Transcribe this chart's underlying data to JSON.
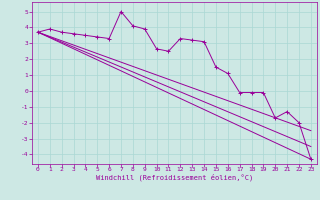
{
  "background_color": "#cde8e4",
  "line_color": "#990099",
  "grid_color": "#aad8d4",
  "xlabel": "Windchill (Refroidissement éolien,°C)",
  "xlim": [
    -0.5,
    23.5
  ],
  "ylim": [
    -4.6,
    5.6
  ],
  "yticks": [
    -4,
    -3,
    -2,
    -1,
    0,
    1,
    2,
    3,
    4,
    5
  ],
  "xticks": [
    0,
    1,
    2,
    3,
    4,
    5,
    6,
    7,
    8,
    9,
    10,
    11,
    12,
    13,
    14,
    15,
    16,
    17,
    18,
    19,
    20,
    21,
    22,
    23
  ],
  "series_main": {
    "x": [
      0,
      1,
      2,
      3,
      4,
      5,
      6,
      7,
      8,
      9,
      10,
      11,
      12,
      13,
      14,
      15,
      16,
      17,
      18,
      19,
      20,
      21,
      22,
      23
    ],
    "y": [
      3.7,
      3.9,
      3.7,
      3.6,
      3.5,
      3.4,
      3.3,
      5.0,
      4.1,
      3.9,
      2.65,
      2.5,
      3.3,
      3.2,
      3.1,
      1.5,
      1.1,
      -0.1,
      -0.1,
      -0.1,
      -1.7,
      -1.3,
      -2.0,
      -4.3
    ]
  },
  "trend_lines": [
    {
      "x": [
        0,
        23
      ],
      "y": [
        3.7,
        -4.3
      ]
    },
    {
      "x": [
        0,
        23
      ],
      "y": [
        3.7,
        -3.5
      ]
    },
    {
      "x": [
        0,
        23
      ],
      "y": [
        3.7,
        -2.5
      ]
    }
  ]
}
